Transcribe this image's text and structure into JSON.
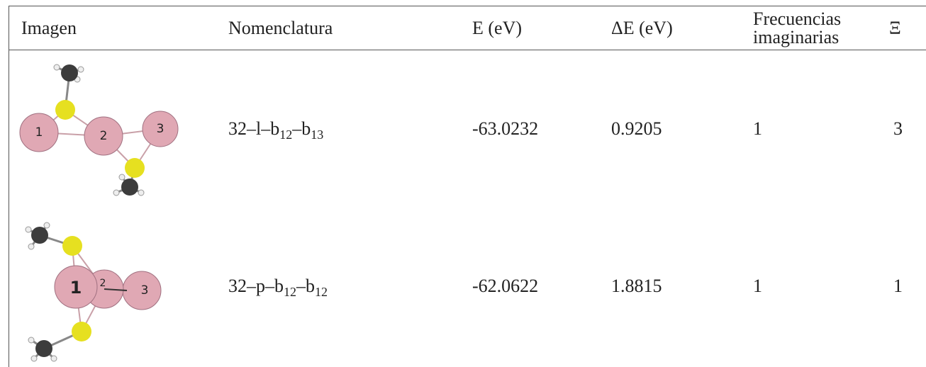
{
  "table": {
    "header": [
      "Imagen",
      "Nomenclatura",
      "E (eV)",
      "ΔE (eV)",
      "Frecuencias imaginarias",
      "Ξ"
    ],
    "rows": [
      {
        "nomenclature": [
          "32–l–b",
          "12",
          "–b",
          "13"
        ],
        "energy": "-63.0232",
        "delta": "0.9205",
        "freq": "1",
        "xi": "3"
      },
      {
        "nomenclature": [
          "32–p–b",
          "12",
          "–b",
          "12"
        ],
        "energy": "-62.0622",
        "delta": "1.8815",
        "freq": "1",
        "xi": "1"
      }
    ]
  }
}
